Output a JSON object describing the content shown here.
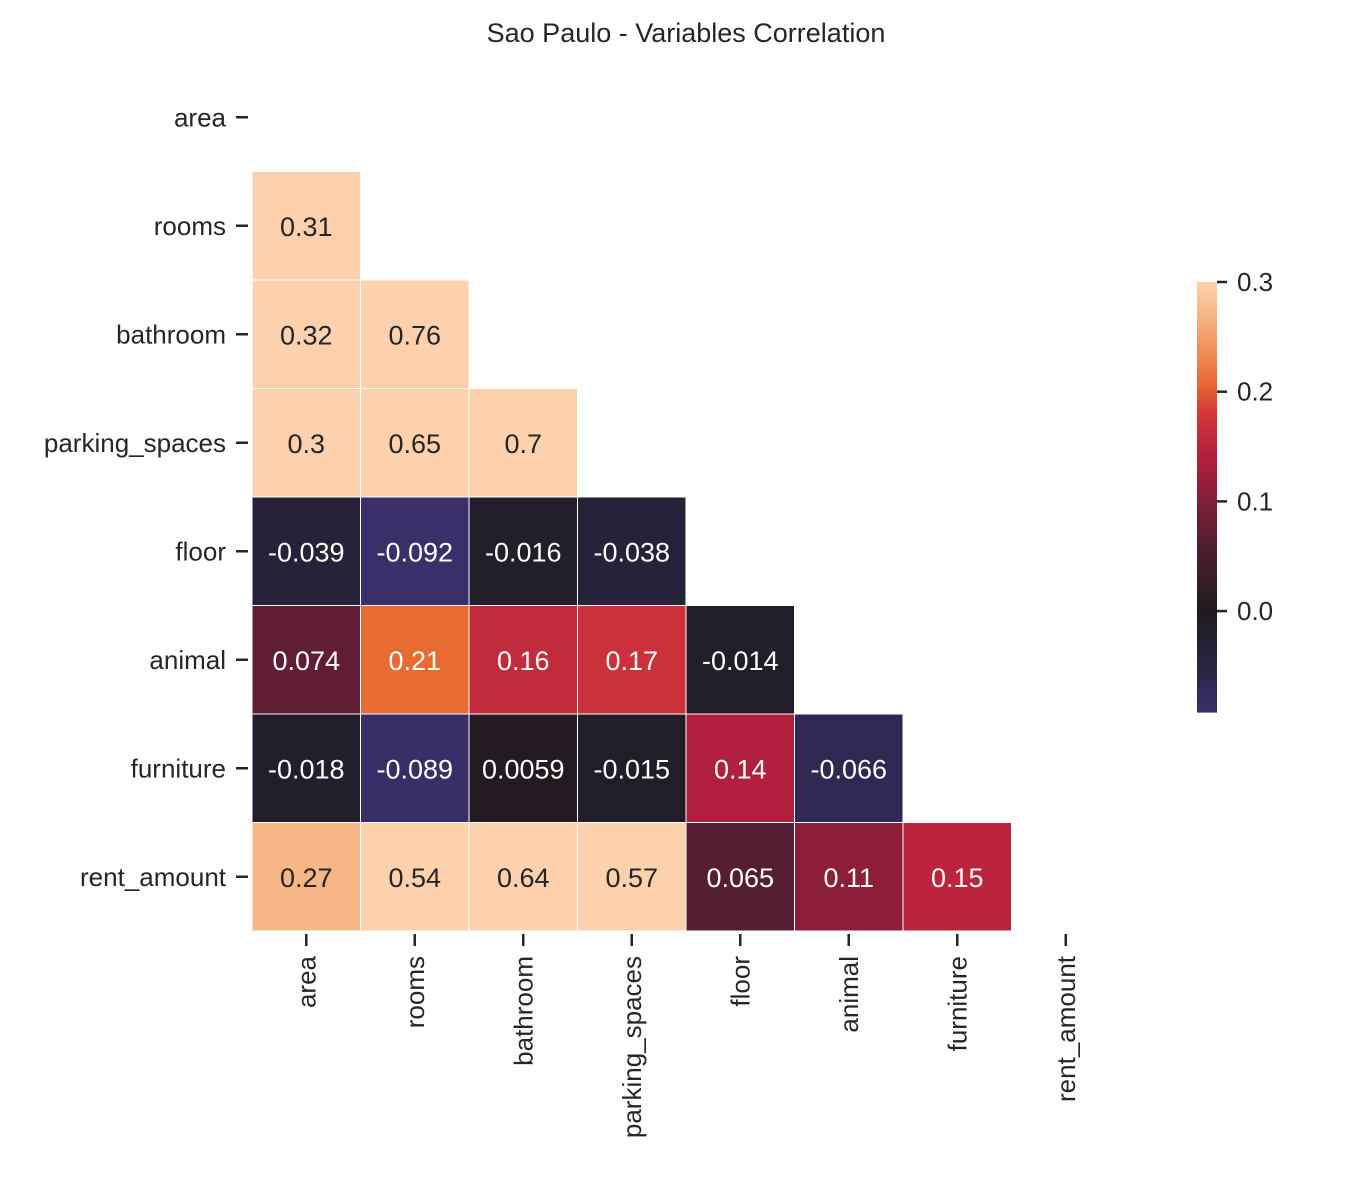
{
  "chart_data": {
    "type": "heatmap",
    "title": "Sao Paulo - Variables Correlation",
    "variables": [
      "area",
      "rooms",
      "bathroom",
      "parking_spaces",
      "floor",
      "animal",
      "furniture",
      "rent_amount"
    ],
    "mask": "upper-triangle-and-diagonal",
    "matrix": [
      [
        null,
        null,
        null,
        null,
        null,
        null,
        null,
        null
      ],
      [
        0.31,
        null,
        null,
        null,
        null,
        null,
        null,
        null
      ],
      [
        0.32,
        0.76,
        null,
        null,
        null,
        null,
        null,
        null
      ],
      [
        0.3,
        0.65,
        0.7,
        null,
        null,
        null,
        null,
        null
      ],
      [
        -0.039,
        -0.092,
        -0.016,
        -0.038,
        null,
        null,
        null,
        null
      ],
      [
        0.074,
        0.21,
        0.16,
        0.17,
        -0.014,
        null,
        null,
        null
      ],
      [
        -0.018,
        -0.089,
        0.0059,
        -0.015,
        0.14,
        -0.066,
        null,
        null
      ],
      [
        0.27,
        0.54,
        0.64,
        0.57,
        0.065,
        0.11,
        0.15,
        null
      ]
    ],
    "colorbar": {
      "vmin": -0.092,
      "vmax": 0.3,
      "center": 0,
      "ticks": [
        0.0,
        0.1,
        0.2,
        0.3
      ],
      "tick_labels": [
        "0.0",
        "0.1",
        "0.2",
        "0.3"
      ],
      "colormap": "diverging (dark blue - black - red - peach)"
    },
    "colors": {
      "negative_end": "#3b2f6b",
      "center": "#1e1b1f",
      "mid_positive": "#b8203f",
      "high_positive": "#e96b34",
      "max_positive": "#fdd1ad",
      "cell_border": "#ffffff",
      "text_dark": "#262626",
      "text_light": "#ffffff"
    },
    "grid": false,
    "annotations": true
  }
}
